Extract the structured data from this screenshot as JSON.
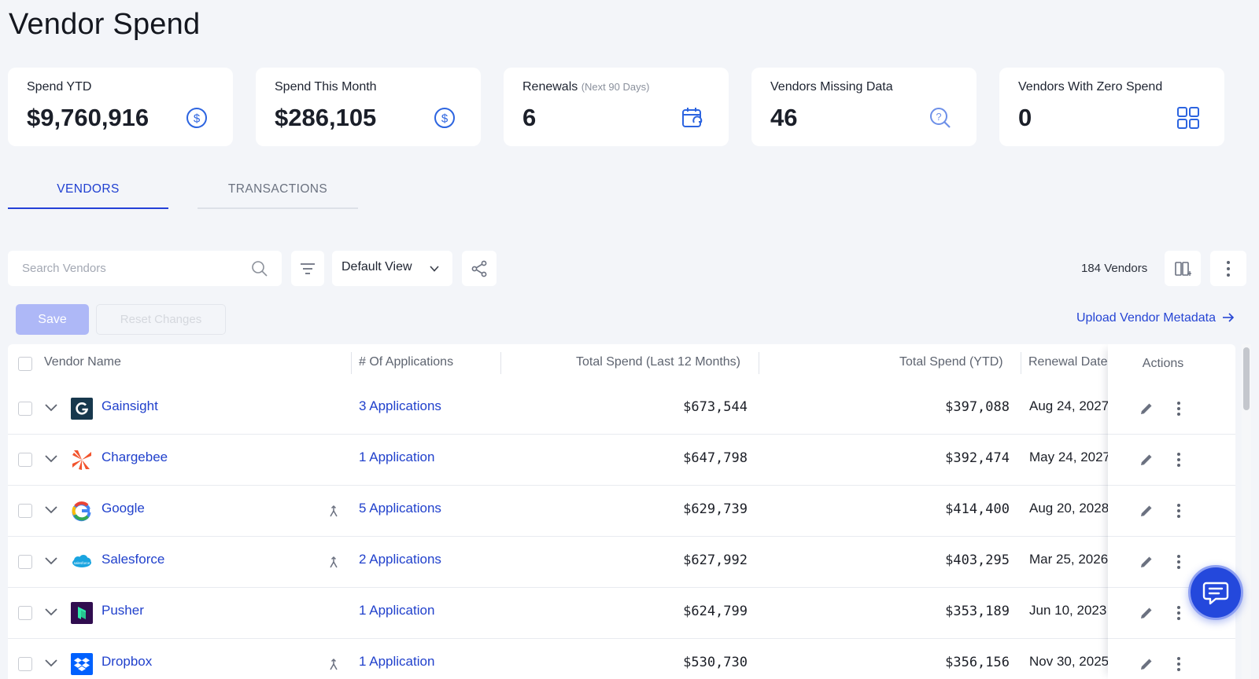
{
  "page": {
    "title": "Vendor Spend"
  },
  "stats": [
    {
      "label": "Spend YTD",
      "sub": "",
      "value": "$9,760,916",
      "icon": "dollar-circle-icon"
    },
    {
      "label": "Spend This Month",
      "sub": "",
      "value": "$286,105",
      "icon": "dollar-circle-icon"
    },
    {
      "label": "Renewals",
      "sub": "(Next 90 Days)",
      "value": "6",
      "icon": "calendar-refresh-icon"
    },
    {
      "label": "Vendors Missing Data",
      "sub": "",
      "value": "46",
      "icon": "search-question-icon"
    },
    {
      "label": "Vendors With Zero Spend",
      "sub": "",
      "value": "0",
      "icon": "grid-icon"
    }
  ],
  "tabs": [
    {
      "label": "VENDORS",
      "active": true
    },
    {
      "label": "TRANSACTIONS",
      "active": false
    }
  ],
  "toolbar": {
    "search_placeholder": "Search Vendors",
    "view_label": "Default View",
    "vendor_count": "184 Vendors",
    "save_label": "Save",
    "reset_label": "Reset Changes",
    "upload_label": "Upload Vendor Metadata"
  },
  "table": {
    "headers": {
      "vendor": "Vendor Name",
      "apps": "# Of Applications",
      "spend12": "Total Spend (Last 12 Months)",
      "spendytd": "Total Spend (YTD)",
      "renewal": "Renewal Date",
      "actions": "Actions"
    },
    "rows": [
      {
        "name": "Gainsight",
        "apps": "3 Applications",
        "spend12": "$673,544",
        "spendytd": "$397,088",
        "renewal": "Aug 24, 2027",
        "logo": "gainsight-logo",
        "merged": false
      },
      {
        "name": "Chargebee",
        "apps": "1 Application",
        "spend12": "$647,798",
        "spendytd": "$392,474",
        "renewal": "May 24, 2027",
        "logo": "chargebee-logo",
        "merged": false
      },
      {
        "name": "Google",
        "apps": "5 Applications",
        "spend12": "$629,739",
        "spendytd": "$414,400",
        "renewal": "Aug 20, 2028",
        "logo": "google-logo",
        "merged": true
      },
      {
        "name": "Salesforce",
        "apps": "2 Applications",
        "spend12": "$627,992",
        "spendytd": "$403,295",
        "renewal": "Mar 25, 2026",
        "logo": "salesforce-logo",
        "merged": true
      },
      {
        "name": "Pusher",
        "apps": "1 Application",
        "spend12": "$624,799",
        "spendytd": "$353,189",
        "renewal": "Jun 10, 2023",
        "logo": "pusher-logo",
        "merged": false
      },
      {
        "name": "Dropbox",
        "apps": "1 Application",
        "spend12": "$530,730",
        "spendytd": "$356,156",
        "renewal": "Nov 30, 2025",
        "logo": "dropbox-logo",
        "merged": true
      }
    ]
  },
  "colors": {
    "accent": "#2440d8",
    "link": "#2141cc",
    "save_disabled": "#aeb8f7",
    "chat": "#2448dc"
  }
}
